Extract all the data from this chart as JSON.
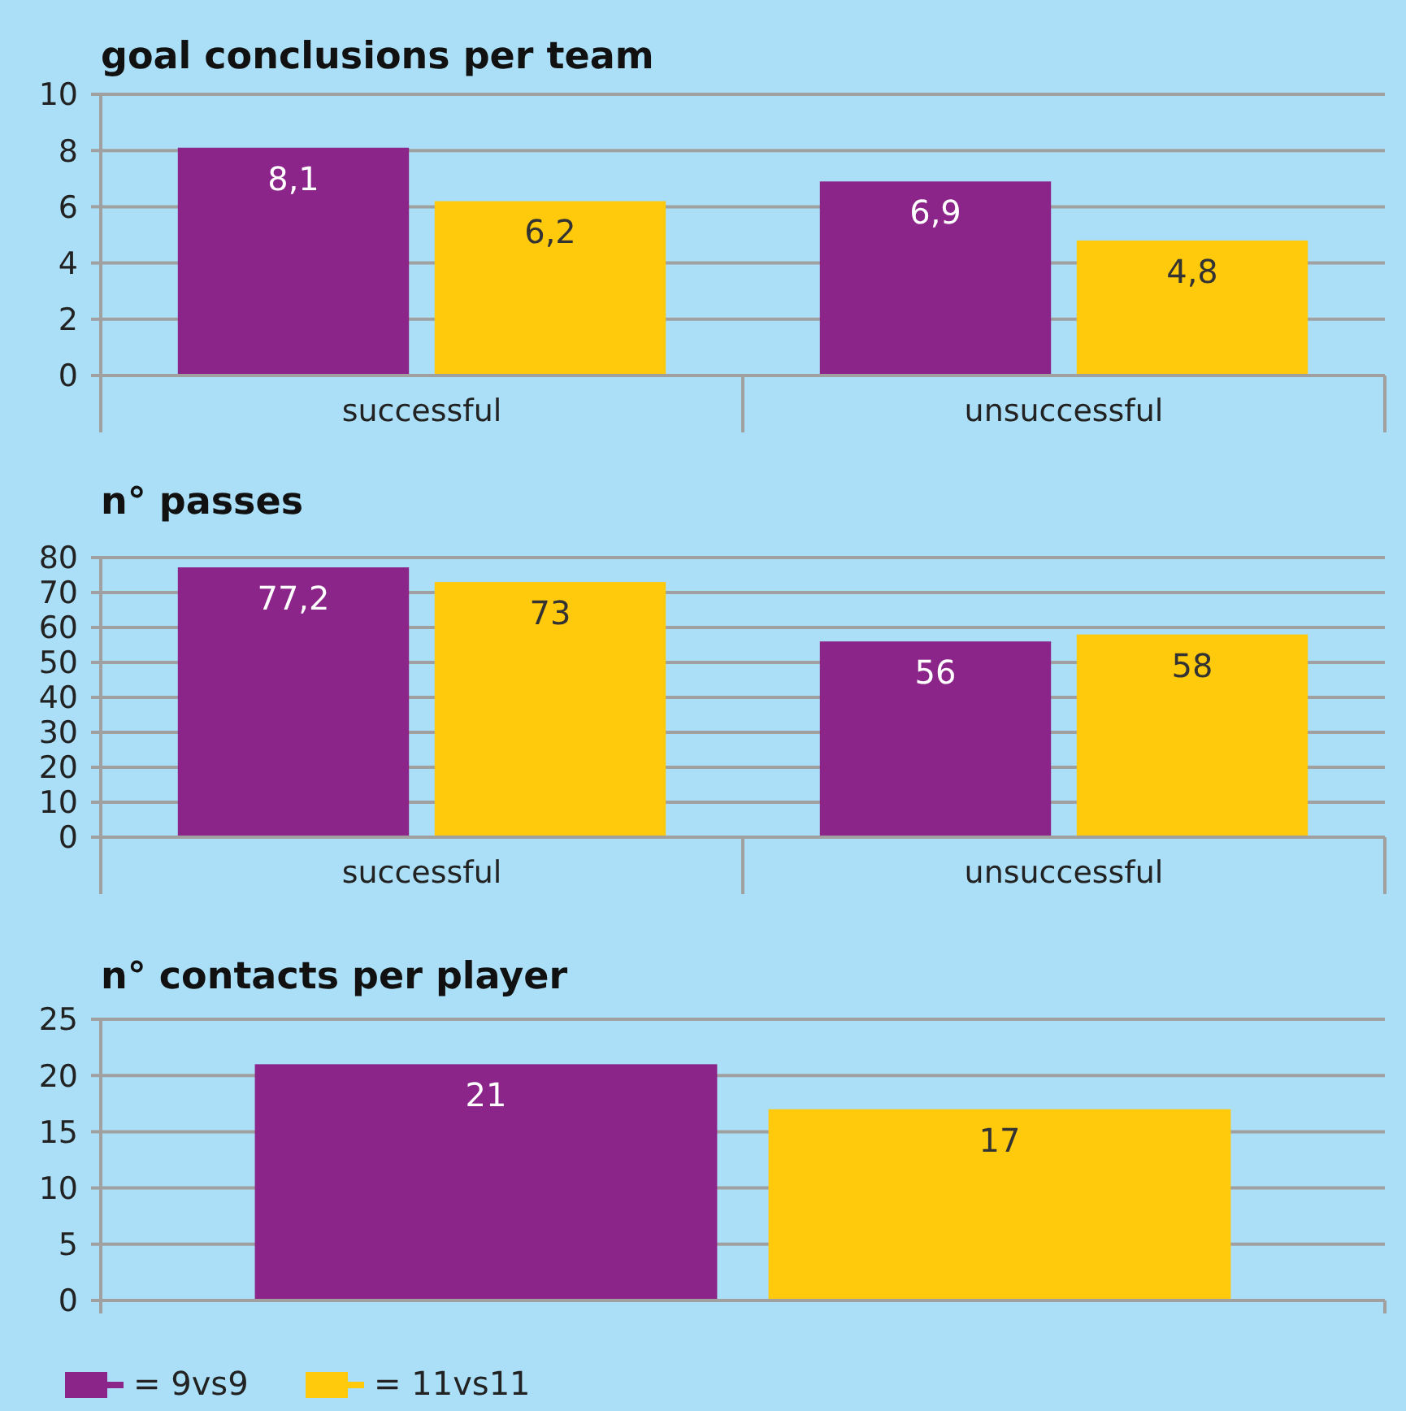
{
  "chart_data": [
    {
      "type": "bar",
      "title": "goal conclusions per team",
      "categories": [
        "successful",
        "unsuccessful"
      ],
      "series": [
        {
          "color": "#8b2589",
          "values": [
            8.1,
            6.9
          ],
          "value_labels": [
            "8,1",
            "6,9"
          ]
        },
        {
          "color": "#ffc90c",
          "values": [
            6.2,
            4.8
          ],
          "value_labels": [
            "6,2",
            "4,8"
          ]
        }
      ],
      "ylim": [
        0,
        10
      ],
      "yticks": [
        0,
        2,
        4,
        6,
        8,
        10
      ],
      "grid": "y"
    },
    {
      "type": "bar",
      "title": "n° passes",
      "categories": [
        "successful",
        "unsuccessful"
      ],
      "series": [
        {
          "color": "#8b2589",
          "values": [
            77.2,
            56
          ],
          "value_labels": [
            "77,2",
            "56"
          ]
        },
        {
          "color": "#ffc90c",
          "values": [
            73,
            58
          ],
          "value_labels": [
            "73",
            "58"
          ]
        }
      ],
      "ylim": [
        0,
        80
      ],
      "yticks": [
        0,
        10,
        20,
        30,
        40,
        50,
        60,
        70,
        80
      ],
      "grid": "y"
    },
    {
      "type": "bar",
      "title": "n° contacts per player",
      "categories": [
        null
      ],
      "series": [
        {
          "name": "= 9vs9",
          "color": "#8b2589",
          "values": [
            21
          ],
          "value_labels": [
            "21"
          ]
        },
        {
          "name": "= 11vs11",
          "color": "#ffc90c",
          "values": [
            17
          ],
          "value_labels": [
            "17"
          ]
        }
      ],
      "ylim": [
        0,
        25
      ],
      "yticks": [
        0,
        5,
        10,
        15,
        20,
        25
      ],
      "grid": "y",
      "legend": "bottom left"
    }
  ]
}
